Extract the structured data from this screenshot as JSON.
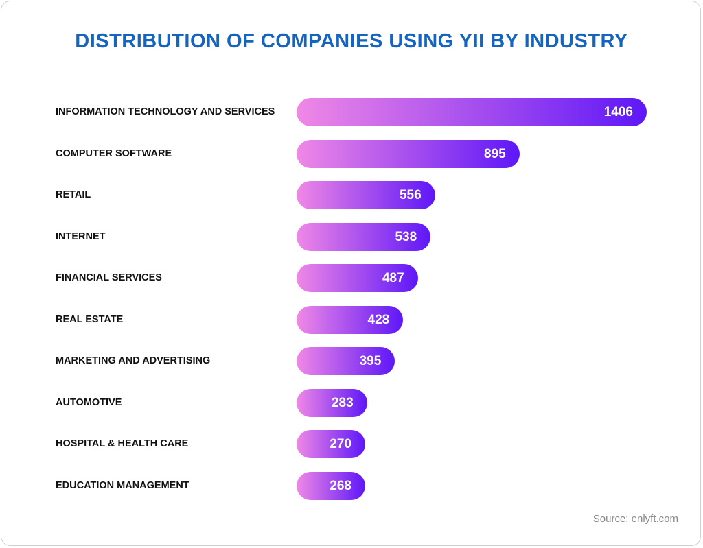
{
  "chart_data": {
    "type": "bar",
    "orientation": "horizontal",
    "title": "DISTRIBUTION OF COMPANIES USING YII BY INDUSTRY",
    "categories": [
      "INFORMATION TECHNOLOGY AND SERVICES",
      "COMPUTER SOFTWARE",
      "RETAIL",
      "INTERNET",
      "FINANCIAL SERVICES",
      "REAL ESTATE",
      "MARKETING AND ADVERTISING",
      "AUTOMOTIVE",
      "HOSPITAL & HEALTH CARE",
      "EDUCATION MANAGEMENT"
    ],
    "values": [
      1406,
      895,
      556,
      538,
      487,
      428,
      395,
      283,
      270,
      268
    ],
    "data_labels": true,
    "grid": false,
    "colors": {
      "gradient_start": "#f088e6",
      "gradient_end": "#5e17f7",
      "title": "#1565c0"
    },
    "source": "Source: enlyft.com"
  }
}
